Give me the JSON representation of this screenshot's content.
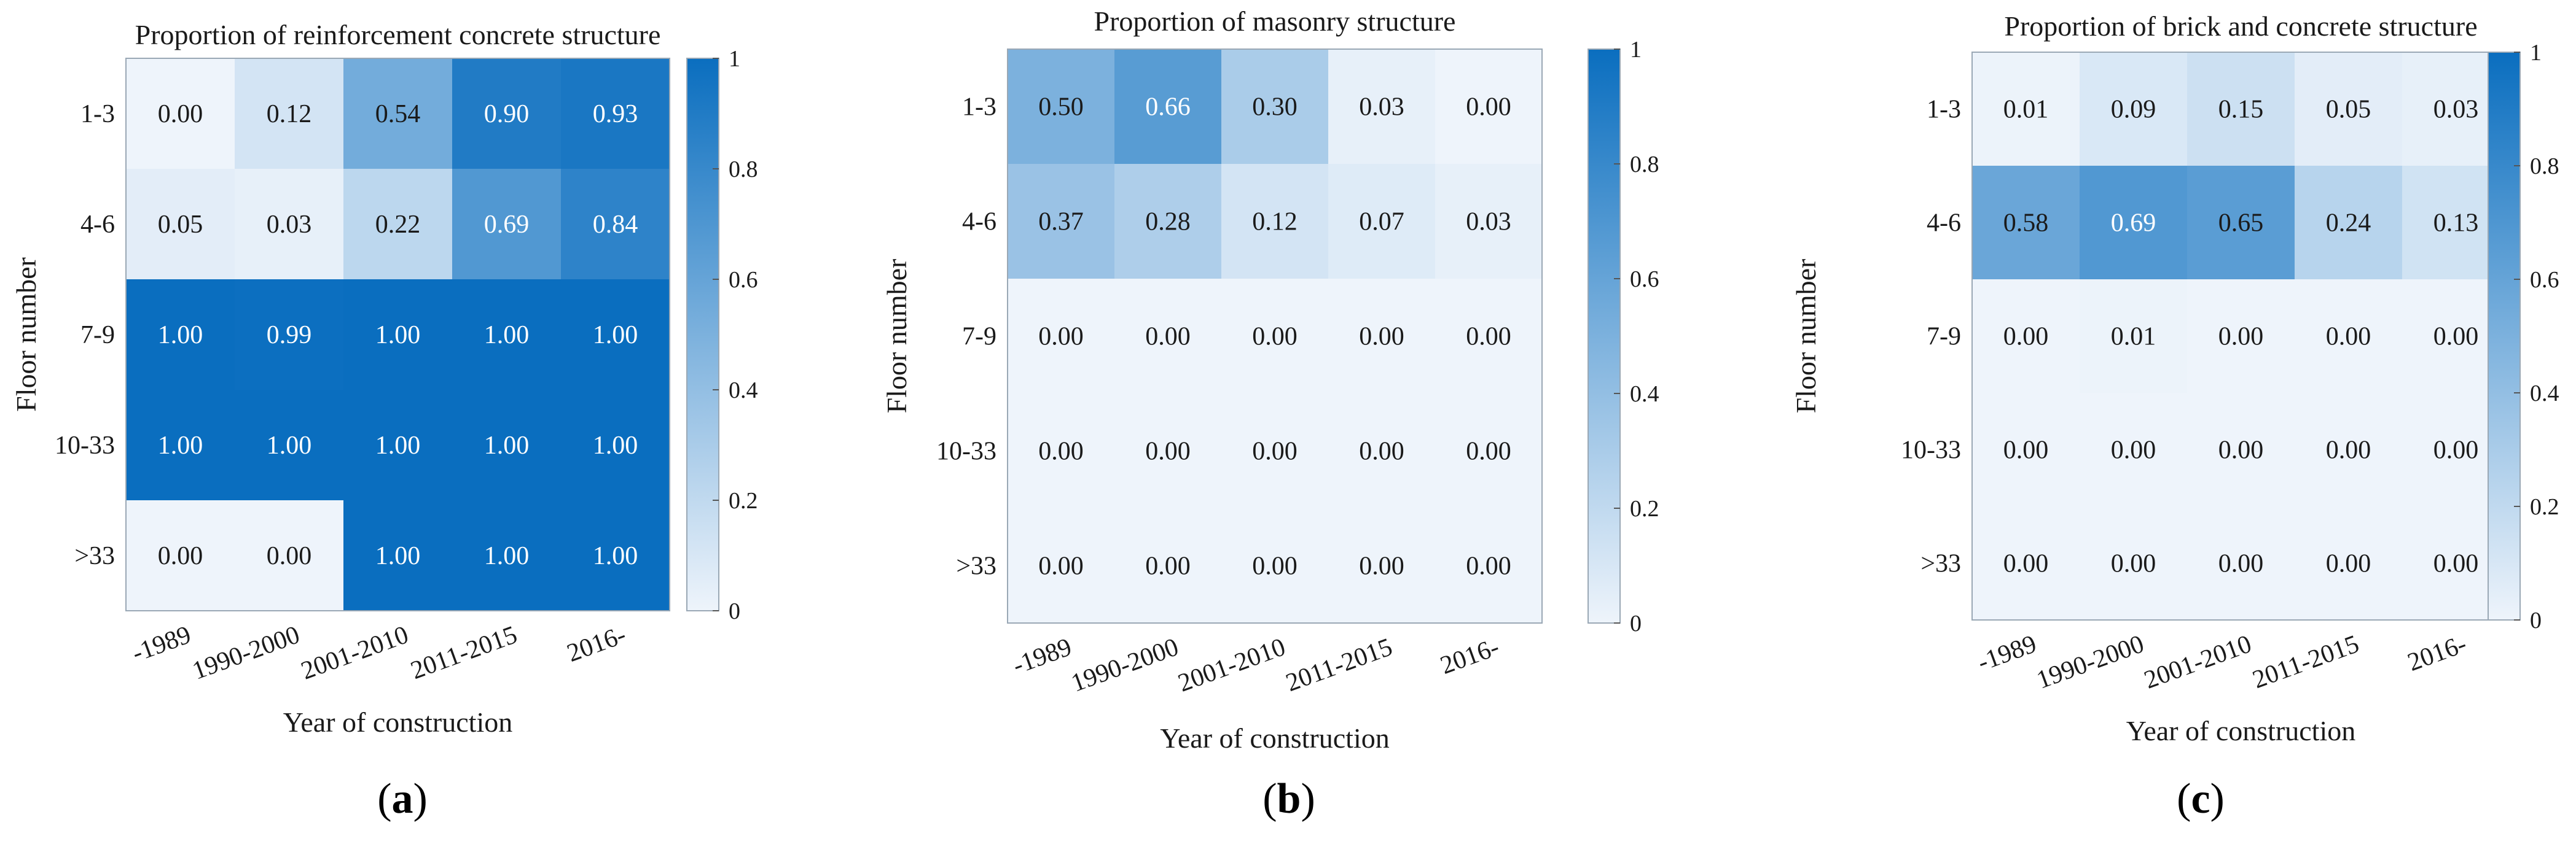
{
  "colorscale": {
    "low": "#eef4fb",
    "high": "#0a6ebf"
  },
  "captions": {
    "a_open": "(",
    "a_letter": "a",
    "a_close": ")",
    "b_open": "(",
    "b_letter": "b",
    "b_close": ")",
    "c_open": "(",
    "c_letter": "c",
    "c_close": ")"
  },
  "chart_data": [
    {
      "type": "heatmap",
      "title": "Proportion of reinforcement concrete structure",
      "xlabel": "Year of construction",
      "ylabel": "Floor number",
      "x_categories": [
        "-1989",
        "1990-2000",
        "2001-2010",
        "2011-2015",
        "2016-"
      ],
      "y_categories": [
        "1-3",
        "4-6",
        "7-9",
        "10-33",
        ">33"
      ],
      "values": [
        [
          0.0,
          0.12,
          0.54,
          0.9,
          0.93
        ],
        [
          0.05,
          0.03,
          0.22,
          0.69,
          0.84
        ],
        [
          1.0,
          0.99,
          1.0,
          1.0,
          1.0
        ],
        [
          1.0,
          1.0,
          1.0,
          1.0,
          1.0
        ],
        [
          0.0,
          0.0,
          1.0,
          1.0,
          1.0
        ]
      ],
      "colorbar_range": [
        0,
        1
      ],
      "colorbar_ticks": [
        0,
        0.2,
        0.4,
        0.6,
        0.8,
        1
      ],
      "colorbar_tick_labels": [
        "0",
        "0.2",
        "0.4",
        "0.6",
        "0.8",
        "1"
      ]
    },
    {
      "type": "heatmap",
      "title": "Proportion of masonry structure",
      "xlabel": "Year of construction",
      "ylabel": "Floor number",
      "x_categories": [
        "-1989",
        "1990-2000",
        "2001-2010",
        "2011-2015",
        "2016-"
      ],
      "y_categories": [
        "1-3",
        "4-6",
        "7-9",
        "10-33",
        ">33"
      ],
      "values": [
        [
          0.5,
          0.66,
          0.3,
          0.03,
          0.0
        ],
        [
          0.37,
          0.28,
          0.12,
          0.07,
          0.03
        ],
        [
          0.0,
          0.0,
          0.0,
          0.0,
          0.0
        ],
        [
          0.0,
          0.0,
          0.0,
          0.0,
          0.0
        ],
        [
          0.0,
          0.0,
          0.0,
          0.0,
          0.0
        ]
      ],
      "colorbar_range": [
        0,
        1
      ],
      "colorbar_ticks": [
        0,
        0.2,
        0.4,
        0.6,
        0.8,
        1
      ],
      "colorbar_tick_labels": [
        "0",
        "0.2",
        "0.4",
        "0.6",
        "0.8",
        "1"
      ]
    },
    {
      "type": "heatmap",
      "title": "Proportion of brick and concrete structure",
      "xlabel": "Year of construction",
      "ylabel": "Floor number",
      "x_categories": [
        "-1989",
        "1990-2000",
        "2001-2010",
        "2011-2015",
        "2016-"
      ],
      "y_categories": [
        "1-3",
        "4-6",
        "7-9",
        "10-33",
        ">33"
      ],
      "values": [
        [
          0.01,
          0.09,
          0.15,
          0.05,
          0.03
        ],
        [
          0.58,
          0.69,
          0.65,
          0.24,
          0.13
        ],
        [
          0.0,
          0.01,
          0.0,
          0.0,
          0.0
        ],
        [
          0.0,
          0.0,
          0.0,
          0.0,
          0.0
        ],
        [
          0.0,
          0.0,
          0.0,
          0.0,
          0.0
        ]
      ],
      "colorbar_range": [
        0,
        1
      ],
      "colorbar_ticks": [
        0,
        0.2,
        0.4,
        0.6,
        0.8,
        1
      ],
      "colorbar_tick_labels": [
        "0",
        "0.2",
        "0.4",
        "0.6",
        "0.8",
        "1"
      ]
    }
  ]
}
